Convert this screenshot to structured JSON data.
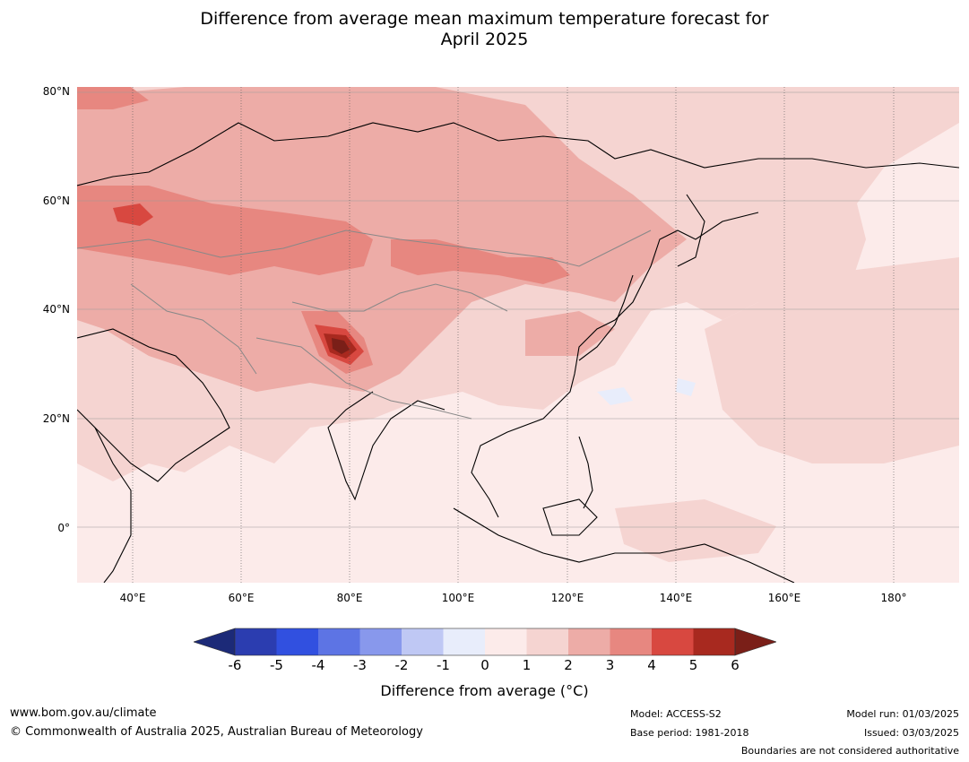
{
  "title_line1": "Difference from average mean maximum temperature forecast for",
  "title_line2": "April 2025",
  "map": {
    "lat_labels": [
      "80°N",
      "60°N",
      "40°N",
      "20°N",
      "0°"
    ],
    "lon_labels": [
      "40°E",
      "60°E",
      "80°E",
      "100°E",
      "120°E",
      "140°E",
      "160°E",
      "180°"
    ],
    "colors": {
      "ocean_base": "#fcebea",
      "band_1_2": "#f5d4d1",
      "band_2_3": "#edaca7",
      "band_3_4": "#e78780",
      "band_4_5": "#d84840",
      "band_5_6": "#a8291f",
      "above_6": "#7a1f18",
      "band_m1_0": "#e8edfb",
      "coastline": "#000000",
      "borders": "#888888"
    }
  },
  "colorbar": {
    "ticks": [
      "-6",
      "-5",
      "-4",
      "-3",
      "-2",
      "-1",
      "0",
      "1",
      "2",
      "3",
      "4",
      "5",
      "6"
    ],
    "colors": [
      "#1c2a78",
      "#2b3db0",
      "#3150e0",
      "#5d74e4",
      "#8898ec",
      "#bfc8f4",
      "#e8edfb",
      "#fcebea",
      "#f5d4d1",
      "#edaca7",
      "#e78780",
      "#d84840",
      "#a8291f",
      "#7a1f18"
    ],
    "label": "Difference from average ($^\\circ$C)",
    "label_display": "Difference from average (°C)"
  },
  "footer": {
    "url": "www.bom.gov.au/climate",
    "copyright": "© Commonwealth of Australia 2025, Australian Bureau of Meteorology",
    "model": "Model: ACCESS-S2",
    "base_period": "Base period: 1981-2018",
    "model_run": "Model run: 01/03/2025",
    "issued": "Issued: 03/03/2025",
    "disclaimer": "Boundaries are not considered authoritative"
  }
}
